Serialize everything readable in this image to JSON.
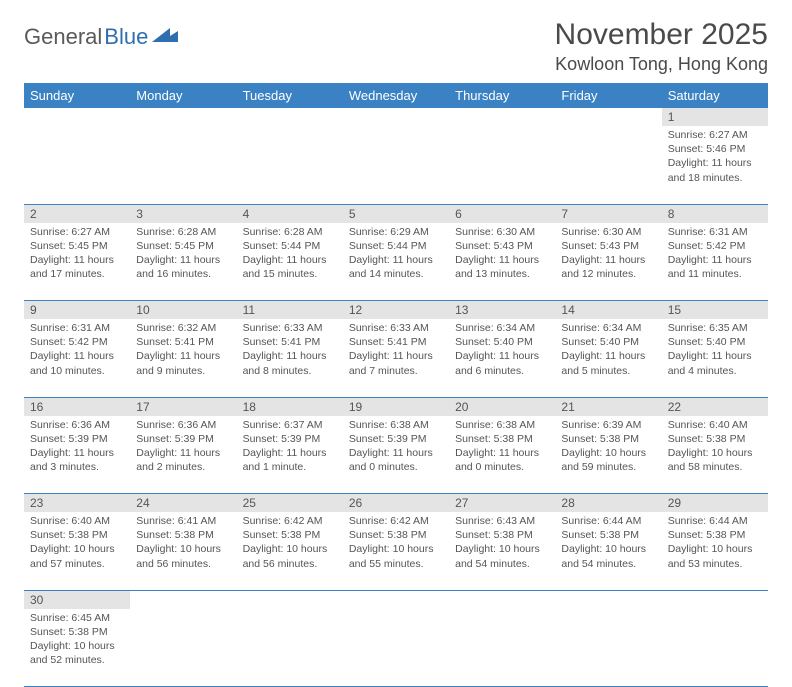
{
  "logo": {
    "word1": "General",
    "word2": "Blue"
  },
  "title": "November 2025",
  "location": "Kowloon Tong, Hong Kong",
  "colors": {
    "header_bg": "#3b82c4",
    "header_text": "#ffffff",
    "daynum_bg": "#e4e4e4",
    "border": "#3b82c4",
    "logo_blue": "#2f6fb0"
  },
  "weekdays": [
    "Sunday",
    "Monday",
    "Tuesday",
    "Wednesday",
    "Thursday",
    "Friday",
    "Saturday"
  ],
  "weeks": [
    [
      null,
      null,
      null,
      null,
      null,
      null,
      {
        "n": "1",
        "sr": "6:27 AM",
        "ss": "5:46 PM",
        "dl": "11 hours and 18 minutes."
      }
    ],
    [
      {
        "n": "2",
        "sr": "6:27 AM",
        "ss": "5:45 PM",
        "dl": "11 hours and 17 minutes."
      },
      {
        "n": "3",
        "sr": "6:28 AM",
        "ss": "5:45 PM",
        "dl": "11 hours and 16 minutes."
      },
      {
        "n": "4",
        "sr": "6:28 AM",
        "ss": "5:44 PM",
        "dl": "11 hours and 15 minutes."
      },
      {
        "n": "5",
        "sr": "6:29 AM",
        "ss": "5:44 PM",
        "dl": "11 hours and 14 minutes."
      },
      {
        "n": "6",
        "sr": "6:30 AM",
        "ss": "5:43 PM",
        "dl": "11 hours and 13 minutes."
      },
      {
        "n": "7",
        "sr": "6:30 AM",
        "ss": "5:43 PM",
        "dl": "11 hours and 12 minutes."
      },
      {
        "n": "8",
        "sr": "6:31 AM",
        "ss": "5:42 PM",
        "dl": "11 hours and 11 minutes."
      }
    ],
    [
      {
        "n": "9",
        "sr": "6:31 AM",
        "ss": "5:42 PM",
        "dl": "11 hours and 10 minutes."
      },
      {
        "n": "10",
        "sr": "6:32 AM",
        "ss": "5:41 PM",
        "dl": "11 hours and 9 minutes."
      },
      {
        "n": "11",
        "sr": "6:33 AM",
        "ss": "5:41 PM",
        "dl": "11 hours and 8 minutes."
      },
      {
        "n": "12",
        "sr": "6:33 AM",
        "ss": "5:41 PM",
        "dl": "11 hours and 7 minutes."
      },
      {
        "n": "13",
        "sr": "6:34 AM",
        "ss": "5:40 PM",
        "dl": "11 hours and 6 minutes."
      },
      {
        "n": "14",
        "sr": "6:34 AM",
        "ss": "5:40 PM",
        "dl": "11 hours and 5 minutes."
      },
      {
        "n": "15",
        "sr": "6:35 AM",
        "ss": "5:40 PM",
        "dl": "11 hours and 4 minutes."
      }
    ],
    [
      {
        "n": "16",
        "sr": "6:36 AM",
        "ss": "5:39 PM",
        "dl": "11 hours and 3 minutes."
      },
      {
        "n": "17",
        "sr": "6:36 AM",
        "ss": "5:39 PM",
        "dl": "11 hours and 2 minutes."
      },
      {
        "n": "18",
        "sr": "6:37 AM",
        "ss": "5:39 PM",
        "dl": "11 hours and 1 minute."
      },
      {
        "n": "19",
        "sr": "6:38 AM",
        "ss": "5:39 PM",
        "dl": "11 hours and 0 minutes."
      },
      {
        "n": "20",
        "sr": "6:38 AM",
        "ss": "5:38 PM",
        "dl": "11 hours and 0 minutes."
      },
      {
        "n": "21",
        "sr": "6:39 AM",
        "ss": "5:38 PM",
        "dl": "10 hours and 59 minutes."
      },
      {
        "n": "22",
        "sr": "6:40 AM",
        "ss": "5:38 PM",
        "dl": "10 hours and 58 minutes."
      }
    ],
    [
      {
        "n": "23",
        "sr": "6:40 AM",
        "ss": "5:38 PM",
        "dl": "10 hours and 57 minutes."
      },
      {
        "n": "24",
        "sr": "6:41 AM",
        "ss": "5:38 PM",
        "dl": "10 hours and 56 minutes."
      },
      {
        "n": "25",
        "sr": "6:42 AM",
        "ss": "5:38 PM",
        "dl": "10 hours and 56 minutes."
      },
      {
        "n": "26",
        "sr": "6:42 AM",
        "ss": "5:38 PM",
        "dl": "10 hours and 55 minutes."
      },
      {
        "n": "27",
        "sr": "6:43 AM",
        "ss": "5:38 PM",
        "dl": "10 hours and 54 minutes."
      },
      {
        "n": "28",
        "sr": "6:44 AM",
        "ss": "5:38 PM",
        "dl": "10 hours and 54 minutes."
      },
      {
        "n": "29",
        "sr": "6:44 AM",
        "ss": "5:38 PM",
        "dl": "10 hours and 53 minutes."
      }
    ],
    [
      {
        "n": "30",
        "sr": "6:45 AM",
        "ss": "5:38 PM",
        "dl": "10 hours and 52 minutes."
      },
      null,
      null,
      null,
      null,
      null,
      null
    ]
  ],
  "labels": {
    "sunrise": "Sunrise:",
    "sunset": "Sunset:",
    "daylight": "Daylight:"
  }
}
